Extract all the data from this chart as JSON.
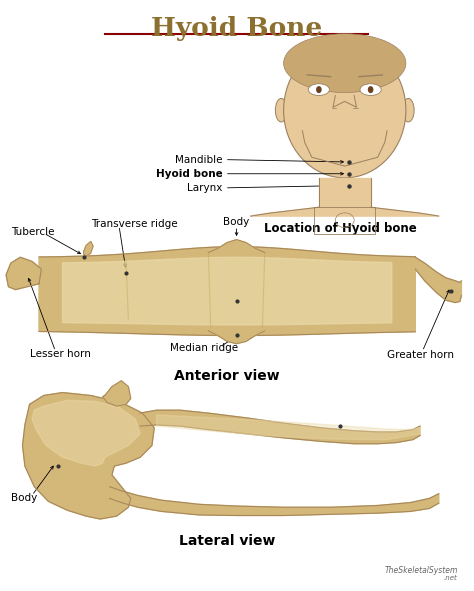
{
  "title": "Hyoid Bone",
  "title_color": "#8B7030",
  "title_underline_color": "#8B0000",
  "bg_color": "#FFFFFF",
  "bone_color": "#D4B87A",
  "bone_light": "#EAD9A8",
  "bone_dark": "#A8885A",
  "bone_mid": "#C4A860",
  "face_color": "#E8C99A",
  "face_outline": "#9B8060",
  "label_color": "#111111",
  "watermark": "TheSkeletalSystem",
  "watermark_net": ".net"
}
